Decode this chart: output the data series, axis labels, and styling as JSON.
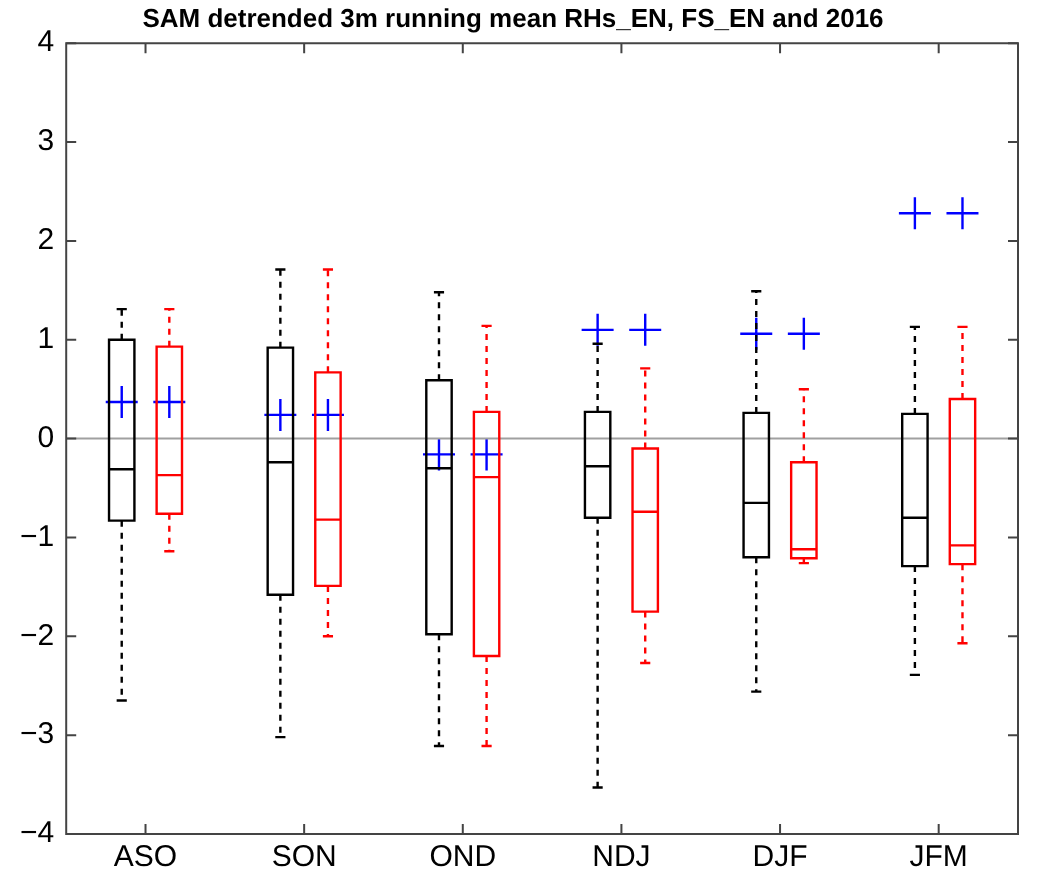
{
  "chart_data": {
    "type": "box",
    "title": "SAM detrended 3m running mean RHs_EN, FS_EN and 2016",
    "categories": [
      "ASO",
      "SON",
      "OND",
      "NDJ",
      "DJF",
      "JFM"
    ],
    "ylim": [
      -4,
      4
    ],
    "yticks": [
      -4,
      -3,
      -2,
      -1,
      0,
      1,
      2,
      3,
      4
    ],
    "grid": false,
    "legend": false,
    "ref_lines": [
      {
        "axis": "y",
        "value": 0,
        "color": "#a0a0a0"
      }
    ],
    "series": [
      {
        "color": "#000000",
        "line_style": "dashed",
        "boxes": [
          {
            "low": -2.65,
            "q1": -0.83,
            "median": -0.31,
            "q3": 1.0,
            "high": 1.31
          },
          {
            "low": -3.02,
            "q1": -1.58,
            "median": -0.24,
            "q3": 0.92,
            "high": 1.71
          },
          {
            "low": -3.11,
            "q1": -1.98,
            "median": -0.3,
            "q3": 0.59,
            "high": 1.48
          },
          {
            "low": -3.53,
            "q1": -0.8,
            "median": -0.28,
            "q3": 0.27,
            "high": 0.96
          },
          {
            "low": -2.56,
            "q1": -1.2,
            "median": -0.65,
            "q3": 0.26,
            "high": 1.49
          },
          {
            "low": -2.39,
            "q1": -1.29,
            "median": -0.8,
            "q3": 0.25,
            "high": 1.13
          }
        ]
      },
      {
        "color": "#ff0000",
        "line_style": "dashed",
        "boxes": [
          {
            "low": -1.14,
            "q1": -0.76,
            "median": -0.37,
            "q3": 0.93,
            "high": 1.31
          },
          {
            "low": -2.0,
            "q1": -1.49,
            "median": -0.82,
            "q3": 0.67,
            "high": 1.71
          },
          {
            "low": -3.11,
            "q1": -2.2,
            "median": -0.39,
            "q3": 0.27,
            "high": 1.14
          },
          {
            "low": -2.27,
            "q1": -1.75,
            "median": -0.74,
            "q3": -0.1,
            "high": 0.71
          },
          {
            "low": -1.26,
            "q1": -1.21,
            "median": -1.12,
            "q3": -0.24,
            "high": 0.5
          },
          {
            "low": -2.07,
            "q1": -1.27,
            "median": -1.08,
            "q3": 0.4,
            "high": 1.13
          }
        ]
      },
      {
        "type": "scatter",
        "color": "#0000ff",
        "marker": "cross",
        "x": [
          "ASO",
          "SON",
          "OND",
          "NDJ",
          "DJF",
          "JFM"
        ],
        "values": [
          0.37,
          0.24,
          -0.16,
          1.1,
          1.06,
          2.28
        ]
      },
      {
        "type": "scatter",
        "color": "#0000ff",
        "marker": "cross",
        "x": [
          "ASO",
          "SON",
          "OND",
          "NDJ",
          "DJF",
          "JFM"
        ],
        "values": [
          0.37,
          0.24,
          -0.16,
          1.1,
          1.06,
          2.28
        ]
      }
    ]
  }
}
